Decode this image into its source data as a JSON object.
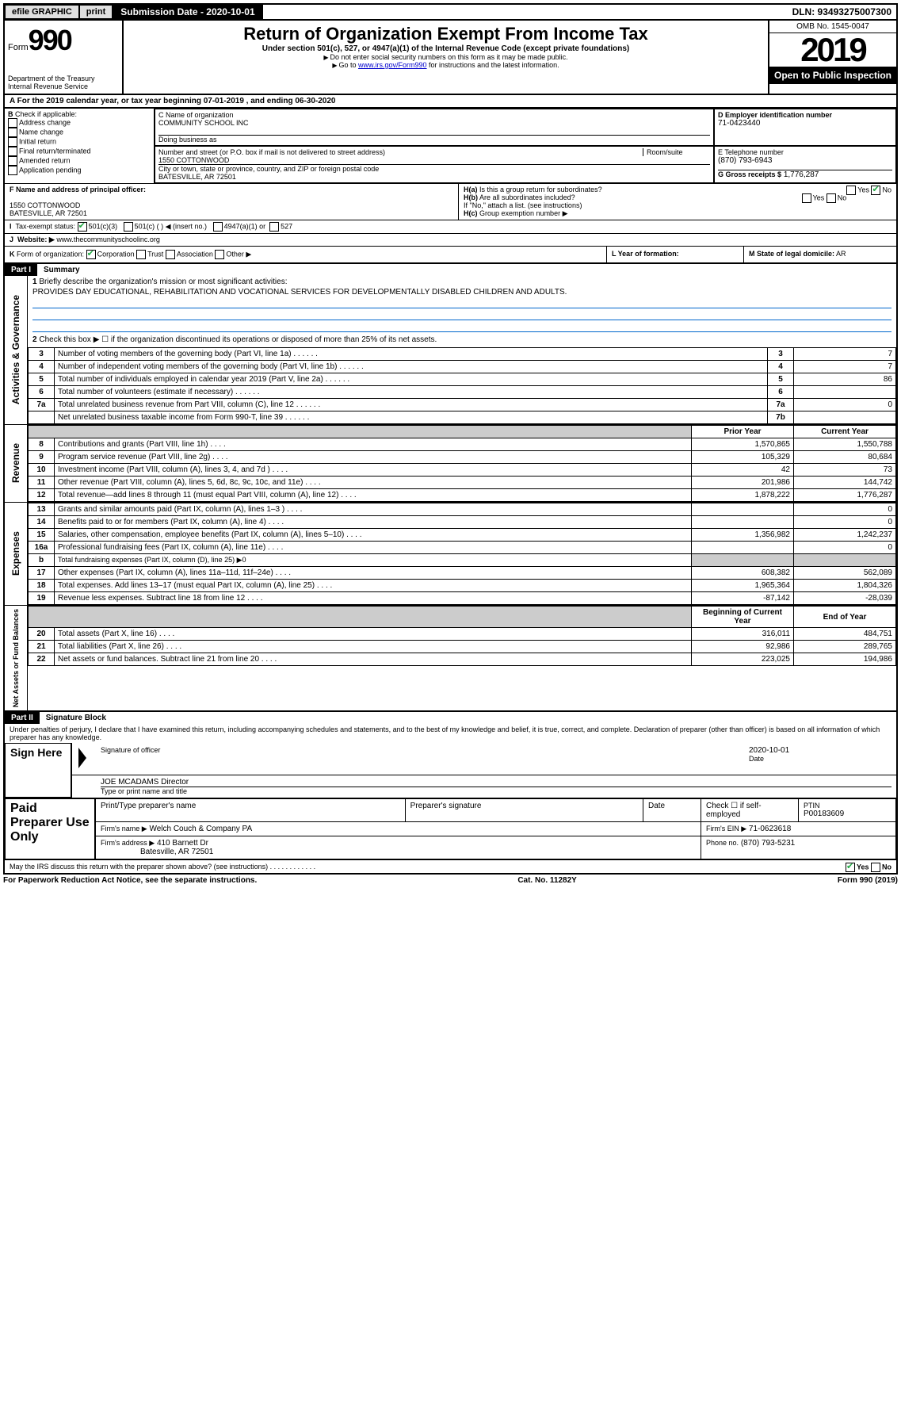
{
  "topbar": {
    "efile": "efile GRAPHIC",
    "print": "print",
    "sub_label": "Submission Date - 2020-10-01",
    "dln": "DLN: 93493275007300"
  },
  "header": {
    "form_word": "Form",
    "form_num": "990",
    "dept": "Department of the Treasury\nInternal Revenue Service",
    "title": "Return of Organization Exempt From Income Tax",
    "subtitle": "Under section 501(c), 527, or 4947(a)(1) of the Internal Revenue Code (except private foundations)",
    "note1": "Do not enter social security numbers on this form as it may be made public.",
    "note2_pre": "Go to ",
    "note2_link": "www.irs.gov/Form990",
    "note2_post": " for instructions and the latest information.",
    "omb": "OMB No. 1545-0047",
    "year": "2019",
    "open": "Open to Public Inspection"
  },
  "periodA": "For the 2019 calendar year, or tax year beginning 07-01-2019   , and ending 06-30-2020",
  "boxB": {
    "label": "Check if applicable:",
    "opts": [
      "Address change",
      "Name change",
      "Initial return",
      "Final return/terminated",
      "Amended return",
      "Application pending"
    ]
  },
  "boxC": {
    "label": "C Name of organization",
    "value": "COMMUNITY SCHOOL INC",
    "dba_label": "Doing business as",
    "dba": "",
    "addr_label": "Number and street (or P.O. box if mail is not delivered to street address)",
    "addr": "1550 COTTONWOOD",
    "room_label": "Room/suite",
    "city_label": "City or town, state or province, country, and ZIP or foreign postal code",
    "city": "BATESVILLE, AR  72501"
  },
  "boxD": {
    "label": "D Employer identification number",
    "value": "71-0423440"
  },
  "boxE": {
    "label": "E Telephone number",
    "value": "(870) 793-6943"
  },
  "boxG": {
    "label": "G Gross receipts $",
    "value": "1,776,287"
  },
  "boxF": {
    "label": "F Name and address of principal officer:",
    "line1": "1550 COTTONWOOD",
    "line2": "BATESVILLE, AR  72501"
  },
  "boxH": {
    "a": "Is this a group return for subordinates?",
    "b": "Are all subordinates included?",
    "note": "If \"No,\" attach a list. (see instructions)",
    "c": "Group exemption number ▶"
  },
  "boxI": {
    "label": "Tax-exempt status:",
    "opt1": "501(c)(3)",
    "opt2": "501(c) (   ) ◀ (insert no.)",
    "opt3": "4947(a)(1) or",
    "opt4": "527"
  },
  "boxJ": {
    "label": "Website: ▶",
    "value": "www.thecommunityschoolinc.org"
  },
  "boxK": {
    "label": "Form of organization:",
    "opts": [
      "Corporation",
      "Trust",
      "Association",
      "Other ▶"
    ]
  },
  "boxL": {
    "label": "L Year of formation:",
    "value": ""
  },
  "boxM": {
    "label": "M State of legal domicile:",
    "value": "AR"
  },
  "part1": {
    "hdr": "Part I",
    "title": "Summary"
  },
  "summary": {
    "q1": "Briefly describe the organization's mission or most significant activities:",
    "q1v": "PROVIDES DAY EDUCATIONAL, REHABILITATION AND VOCATIONAL SERVICES FOR DEVELOPMENTALLY DISABLED CHILDREN AND ADULTS.",
    "q2": "Check this box ▶ ☐  if the organization discontinued its operations or disposed of more than 25% of its net assets.",
    "rows_gov": [
      {
        "n": "3",
        "t": "Number of voting members of the governing body (Part VI, line 1a)",
        "b": "3",
        "v": "7"
      },
      {
        "n": "4",
        "t": "Number of independent voting members of the governing body (Part VI, line 1b)",
        "b": "4",
        "v": "7"
      },
      {
        "n": "5",
        "t": "Total number of individuals employed in calendar year 2019 (Part V, line 2a)",
        "b": "5",
        "v": "86"
      },
      {
        "n": "6",
        "t": "Total number of volunteers (estimate if necessary)",
        "b": "6",
        "v": ""
      },
      {
        "n": "7a",
        "t": "Total unrelated business revenue from Part VIII, column (C), line 12",
        "b": "7a",
        "v": "0"
      },
      {
        "n": "",
        "t": "Net unrelated business taxable income from Form 990-T, line 39",
        "b": "7b",
        "v": ""
      }
    ],
    "hdr_prior": "Prior Year",
    "hdr_curr": "Current Year",
    "rows_rev": [
      {
        "n": "8",
        "t": "Contributions and grants (Part VIII, line 1h)",
        "p": "1,570,865",
        "c": "1,550,788"
      },
      {
        "n": "9",
        "t": "Program service revenue (Part VIII, line 2g)",
        "p": "105,329",
        "c": "80,684"
      },
      {
        "n": "10",
        "t": "Investment income (Part VIII, column (A), lines 3, 4, and 7d )",
        "p": "42",
        "c": "73"
      },
      {
        "n": "11",
        "t": "Other revenue (Part VIII, column (A), lines 5, 6d, 8c, 9c, 10c, and 11e)",
        "p": "201,986",
        "c": "144,742"
      },
      {
        "n": "12",
        "t": "Total revenue—add lines 8 through 11 (must equal Part VIII, column (A), line 12)",
        "p": "1,878,222",
        "c": "1,776,287"
      }
    ],
    "rows_exp": [
      {
        "n": "13",
        "t": "Grants and similar amounts paid (Part IX, column (A), lines 1–3 )",
        "p": "",
        "c": "0"
      },
      {
        "n": "14",
        "t": "Benefits paid to or for members (Part IX, column (A), line 4)",
        "p": "",
        "c": "0"
      },
      {
        "n": "15",
        "t": "Salaries, other compensation, employee benefits (Part IX, column (A), lines 5–10)",
        "p": "1,356,982",
        "c": "1,242,237"
      },
      {
        "n": "16a",
        "t": "Professional fundraising fees (Part IX, column (A), line 11e)",
        "p": "",
        "c": "0"
      },
      {
        "n": "b",
        "t": "Total fundraising expenses (Part IX, column (D), line 25) ▶0",
        "p": "—",
        "c": "—"
      },
      {
        "n": "17",
        "t": "Other expenses (Part IX, column (A), lines 11a–11d, 11f–24e)",
        "p": "608,382",
        "c": "562,089"
      },
      {
        "n": "18",
        "t": "Total expenses. Add lines 13–17 (must equal Part IX, column (A), line 25)",
        "p": "1,965,364",
        "c": "1,804,326"
      },
      {
        "n": "19",
        "t": "Revenue less expenses. Subtract line 18 from line 12",
        "p": "-87,142",
        "c": "-28,039"
      }
    ],
    "hdr_beg": "Beginning of Current Year",
    "hdr_end": "End of Year",
    "rows_net": [
      {
        "n": "20",
        "t": "Total assets (Part X, line 16)",
        "p": "316,011",
        "c": "484,751"
      },
      {
        "n": "21",
        "t": "Total liabilities (Part X, line 26)",
        "p": "92,986",
        "c": "289,765"
      },
      {
        "n": "22",
        "t": "Net assets or fund balances. Subtract line 21 from line 20",
        "p": "223,025",
        "c": "194,986"
      }
    ]
  },
  "part2": {
    "hdr": "Part II",
    "title": "Signature Block",
    "decl": "Under penalties of perjury, I declare that I have examined this return, including accompanying schedules and statements, and to the best of my knowledge and belief, it is true, correct, and complete. Declaration of preparer (other than officer) is based on all information of which preparer has any knowledge."
  },
  "sign": {
    "here": "Sign Here",
    "sig_label": "Signature of officer",
    "date": "2020-10-01",
    "date_label": "Date",
    "name": "JOE MCADAMS  Director",
    "name_label": "Type or print name and title"
  },
  "paid": {
    "label": "Paid Preparer Use Only",
    "h1": "Print/Type preparer's name",
    "h2": "Preparer's signature",
    "h3": "Date",
    "h4": "Check ☐ if self-employed",
    "h5": "PTIN",
    "ptin": "P00183609",
    "firm_label": "Firm's name  ▶",
    "firm": "Welch Couch & Company PA",
    "ein_label": "Firm's EIN ▶",
    "ein": "71-0623618",
    "addr_label": "Firm's address ▶",
    "addr1": "410 Barnett Dr",
    "addr2": "Batesville, AR  72501",
    "phone_label": "Phone no.",
    "phone": "(870) 793-5231"
  },
  "discuss": "May the IRS discuss this return with the preparer shown above? (see instructions)",
  "footer": {
    "l": "For Paperwork Reduction Act Notice, see the separate instructions.",
    "m": "Cat. No. 11282Y",
    "r": "Form 990 (2019)"
  }
}
